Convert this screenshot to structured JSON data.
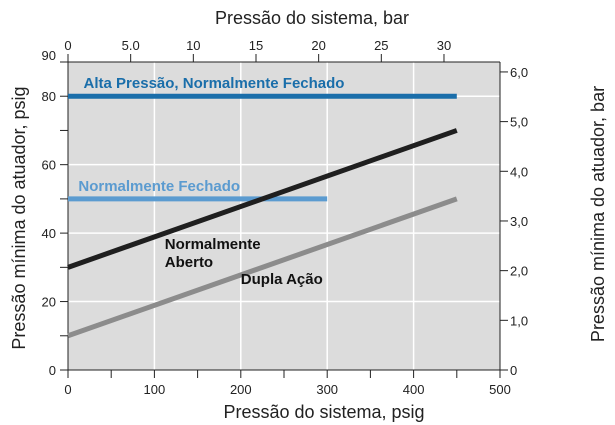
{
  "chart_data": {
    "type": "line",
    "x_bottom": {
      "label": "Pressão do sistema, psig",
      "range": [
        0,
        500
      ],
      "ticks": [
        0,
        100,
        200,
        300,
        400,
        500
      ],
      "tick_labels": [
        "0",
        "100",
        "200",
        "300",
        "400",
        "500"
      ],
      "minor_ticks": [
        50,
        150,
        250,
        350,
        450
      ]
    },
    "x_top": {
      "label": "Pressão do sistema, bar",
      "range": [
        0,
        34.47
      ],
      "ticks": [
        0,
        5,
        10,
        15,
        20,
        25,
        30
      ],
      "tick_labels": [
        "0",
        "5.0",
        "10",
        "15",
        "20",
        "25",
        "30"
      ]
    },
    "y_left": {
      "label": "Pressão mínima do atuador, psig",
      "range": [
        0,
        90
      ],
      "ticks": [
        0,
        20,
        40,
        60,
        80,
        90
      ],
      "tick_labels": [
        "0",
        "20",
        "40",
        "60",
        "80",
        "90"
      ],
      "minor_ticks": [
        10,
        30,
        50,
        70
      ]
    },
    "y_right": {
      "label": "Pressão mínima do atuador, bar",
      "range": [
        0,
        6.2
      ],
      "ticks": [
        0,
        1,
        2,
        3,
        4,
        5,
        6
      ],
      "tick_labels": [
        "0",
        "1,0",
        "2,0",
        "3,0",
        "4,0",
        "5,0",
        "6,0"
      ]
    },
    "grid": true,
    "background": "#dcdcdc",
    "series": [
      {
        "name": "Alta Pressão, Normalmente Fechado",
        "color": "#1a6eaa",
        "x": [
          0,
          450
        ],
        "y": [
          80,
          80
        ]
      },
      {
        "name": "Normalmente Fechado",
        "color": "#5b9bd0",
        "x": [
          0,
          300
        ],
        "y": [
          50,
          50
        ]
      },
      {
        "name": "Normalmente Aberto",
        "color": "#1f1f1f",
        "x": [
          0,
          450
        ],
        "y": [
          30,
          70
        ]
      },
      {
        "name": "Dupla Ação",
        "color": "#8c8c8c",
        "x": [
          0,
          450
        ],
        "y": [
          10,
          50
        ]
      }
    ]
  }
}
